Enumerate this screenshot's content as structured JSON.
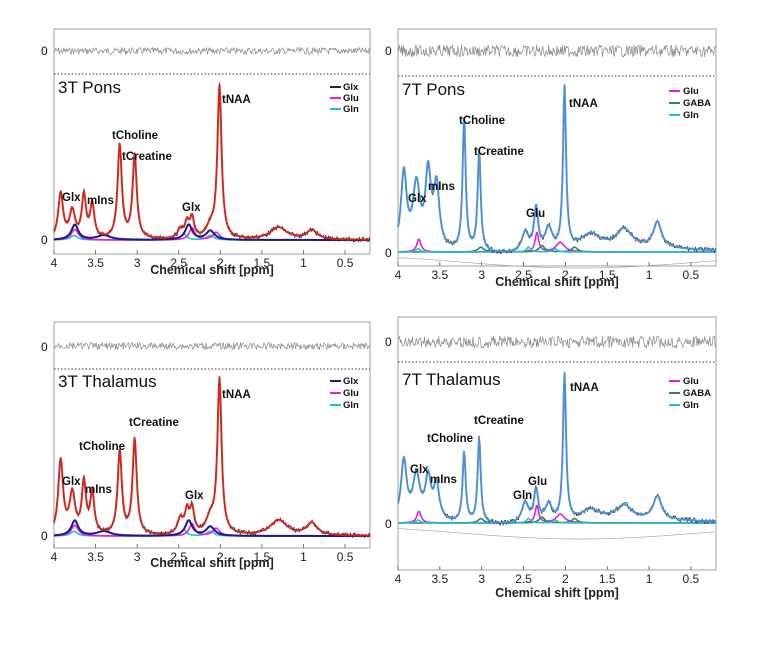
{
  "figure": {
    "background": "#ffffff"
  },
  "chart_data": [
    {
      "type": "line",
      "id": "p3tp",
      "title": "3T Pons",
      "xlabel": "Chemical shift [ppm]",
      "xlim": [
        4,
        0.2
      ],
      "xticks": [
        4,
        3.5,
        3,
        2.5,
        2,
        1.5,
        1,
        0.5
      ],
      "xtick_labels": [
        "4",
        "3.5",
        "3",
        "2.5",
        "2",
        "1.5",
        "1",
        "0.5"
      ],
      "residual_zero_label": "0",
      "baseline_zero_label": "0",
      "legend": [
        {
          "label": "Glx",
          "color": "#1a1a8c"
        },
        {
          "label": "Glu",
          "color": "#e020e0"
        },
        {
          "label": "Gln",
          "color": "#20c0d8"
        }
      ],
      "peak_labels": [
        {
          "text": "Glx",
          "ppm": 3.75
        },
        {
          "text": "mIns",
          "ppm": 3.55
        },
        {
          "text": "tCholine",
          "ppm": 3.21
        },
        {
          "text": "tCreatine",
          "ppm": 3.03
        },
        {
          "text": "Glx",
          "ppm": 2.35
        },
        {
          "text": "tNAA",
          "ppm": 2.01
        }
      ],
      "series": [
        {
          "name": "Data",
          "color": "#333333"
        },
        {
          "name": "Fit",
          "color": "#d42018"
        },
        {
          "name": "Glx",
          "color": "#1a1a8c"
        },
        {
          "name": "Glu",
          "color": "#e020e0"
        },
        {
          "name": "Gln",
          "color": "#20c0d8"
        }
      ]
    },
    {
      "type": "line",
      "id": "p7tp",
      "title": "7T Pons",
      "xlabel": "Chemical shift [ppm]",
      "xlim": [
        4,
        0.2
      ],
      "xticks": [
        4,
        3.5,
        3,
        2.5,
        2,
        1.5,
        1,
        0.5
      ],
      "xtick_labels": [
        "4",
        "3.5",
        "3",
        "2.5",
        "2",
        "1.5",
        "1",
        "0.5"
      ],
      "residual_zero_label": "0",
      "baseline_zero_label": "0",
      "legend": [
        {
          "label": "Glu",
          "color": "#e020e0"
        },
        {
          "label": "GABA",
          "color": "#2a8a4a"
        },
        {
          "label": "Gln",
          "color": "#20c0d8"
        }
      ],
      "peak_labels": [
        {
          "text": "Glx",
          "ppm": 3.75
        },
        {
          "text": "mIns",
          "ppm": 3.55
        },
        {
          "text": "tCholine",
          "ppm": 3.21
        },
        {
          "text": "tCreatine",
          "ppm": 3.03
        },
        {
          "text": "Glu",
          "ppm": 2.35
        },
        {
          "text": "tNAA",
          "ppm": 2.01
        }
      ],
      "series": [
        {
          "name": "Data",
          "color": "#333333"
        },
        {
          "name": "Fit",
          "color": "#4a90d8"
        },
        {
          "name": "Glu",
          "color": "#e020e0"
        },
        {
          "name": "GABA",
          "color": "#2a8a4a"
        },
        {
          "name": "Gln",
          "color": "#20c0d8"
        },
        {
          "name": "Baseline",
          "color": "#aaaaaa"
        }
      ]
    },
    {
      "type": "line",
      "id": "p3tt",
      "title": "3T Thalamus",
      "xlabel": "Chemical shift [ppm]",
      "xlim": [
        4,
        0.2
      ],
      "xticks": [
        4,
        3.5,
        3,
        2.5,
        2,
        1.5,
        1,
        0.5
      ],
      "xtick_labels": [
        "4",
        "3.5",
        "3",
        "2.5",
        "2",
        "1.5",
        "1",
        "0.5"
      ],
      "residual_zero_label": "0",
      "baseline_zero_label": "0",
      "legend": [
        {
          "label": "Glx",
          "color": "#1a1a8c"
        },
        {
          "label": "Glu",
          "color": "#e020e0"
        },
        {
          "label": "Gln",
          "color": "#20c0d8"
        }
      ],
      "peak_labels": [
        {
          "text": "Glx",
          "ppm": 3.75
        },
        {
          "text": "mIns",
          "ppm": 3.55
        },
        {
          "text": "tCholine",
          "ppm": 3.21
        },
        {
          "text": "tCreatine",
          "ppm": 3.03
        },
        {
          "text": "Glx",
          "ppm": 2.35
        },
        {
          "text": "tNAA",
          "ppm": 2.01
        }
      ],
      "series": [
        {
          "name": "Data",
          "color": "#333333"
        },
        {
          "name": "Fit",
          "color": "#d42018"
        },
        {
          "name": "Glx",
          "color": "#1a1a8c"
        },
        {
          "name": "Glu",
          "color": "#e020e0"
        },
        {
          "name": "Gln",
          "color": "#20c0d8"
        }
      ]
    },
    {
      "type": "line",
      "id": "p7tt",
      "title": "7T Thalamus",
      "xlabel": "Chemical shift [ppm]",
      "xlim": [
        4,
        0.2
      ],
      "xticks": [
        4,
        3.5,
        3,
        2.5,
        2,
        1.5,
        1,
        0.5
      ],
      "xtick_labels": [
        "4",
        "3.5",
        "3",
        "2.5",
        "2",
        "1.5",
        "1",
        "0.5"
      ],
      "residual_zero_label": "0",
      "baseline_zero_label": "0",
      "legend": [
        {
          "label": "Glu",
          "color": "#e020e0"
        },
        {
          "label": "GABA",
          "color": "#2a8a4a"
        },
        {
          "label": "Gln",
          "color": "#20c0d8"
        }
      ],
      "peak_labels": [
        {
          "text": "Glx",
          "ppm": 3.75
        },
        {
          "text": "mIns",
          "ppm": 3.55
        },
        {
          "text": "tCholine",
          "ppm": 3.21
        },
        {
          "text": "tCreatine",
          "ppm": 3.03
        },
        {
          "text": "Gln",
          "ppm": 2.45
        },
        {
          "text": "Glu",
          "ppm": 2.35
        },
        {
          "text": "tNAA",
          "ppm": 2.01
        }
      ],
      "series": [
        {
          "name": "Data",
          "color": "#333333"
        },
        {
          "name": "Fit",
          "color": "#4a90d8"
        },
        {
          "name": "Glu",
          "color": "#e020e0"
        },
        {
          "name": "GABA",
          "color": "#2a8a4a"
        },
        {
          "name": "Gln",
          "color": "#20c0d8"
        },
        {
          "name": "Baseline",
          "color": "#aaaaaa"
        }
      ]
    }
  ]
}
